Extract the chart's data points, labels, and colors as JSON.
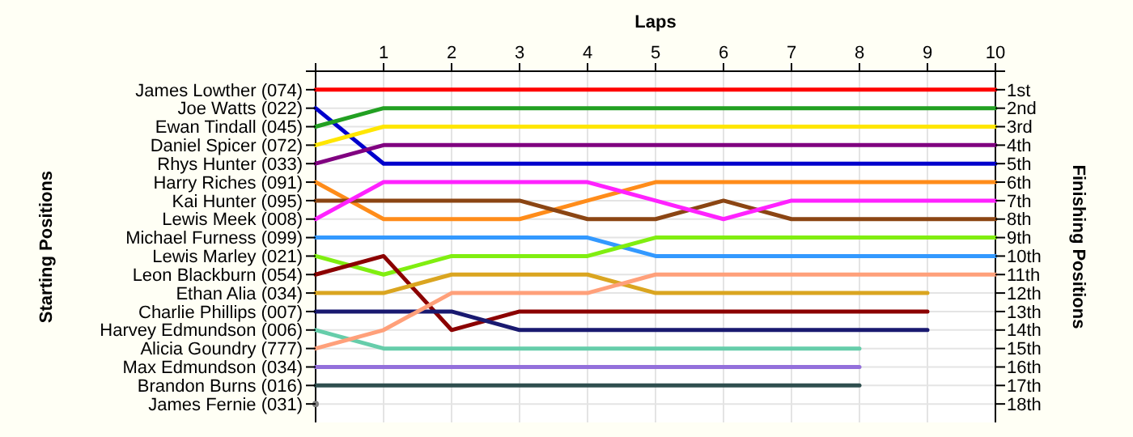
{
  "chart_data": {
    "type": "line",
    "xlabel": "Laps",
    "ylabel": "Finishing Positions",
    "annotations": [
      "Starting Positions"
    ],
    "x": [
      0,
      1,
      2,
      3,
      4,
      5,
      6,
      7,
      8,
      9,
      10
    ],
    "xlim": [
      0,
      10
    ],
    "xticks": [
      {
        "value": 0,
        "label": null
      },
      1,
      2,
      3,
      4,
      5,
      6,
      7,
      8,
      9,
      10
    ],
    "ylim": [
      19,
      0
    ],
    "yticks": [
      {
        "value": 1,
        "label": "1st"
      },
      {
        "value": 2,
        "label": "2nd"
      },
      {
        "value": 3,
        "label": "3rd"
      },
      {
        "value": 4,
        "label": "4th"
      },
      {
        "value": 5,
        "label": "5th"
      },
      {
        "value": 6,
        "label": "6th"
      },
      {
        "value": 7,
        "label": "7th"
      },
      {
        "value": 8,
        "label": "8th"
      },
      {
        "value": 9,
        "label": "9th"
      },
      {
        "value": 10,
        "label": "10th"
      },
      {
        "value": 11,
        "label": "11th"
      },
      {
        "value": 12,
        "label": "12th"
      },
      {
        "value": 13,
        "label": "13th"
      },
      {
        "value": 14,
        "label": "14th"
      },
      {
        "value": 15,
        "label": "15th"
      },
      {
        "value": 16,
        "label": "16th"
      },
      {
        "value": 17,
        "label": "17th"
      },
      {
        "value": 18,
        "label": "18th"
      }
    ],
    "grid": true,
    "marker": "none",
    "line_style": "solid",
    "series": [
      {
        "name": "James Lowther (074)",
        "color": "#ff0000",
        "values": [
          1,
          1,
          1,
          1,
          1,
          1,
          1,
          1,
          1,
          1,
          1
        ]
      },
      {
        "name": "Joe Watts (022)",
        "color": "#0000cc",
        "values": [
          2,
          5,
          5,
          5,
          5,
          5,
          5,
          5,
          5,
          5,
          5
        ]
      },
      {
        "name": "Ewan Tindall (045)",
        "color": "#22a022",
        "values": [
          3,
          2,
          2,
          2,
          2,
          2,
          2,
          2,
          2,
          2,
          2
        ]
      },
      {
        "name": "Daniel Spicer (072)",
        "color": "#ffe600",
        "values": [
          4,
          3,
          3,
          3,
          3,
          3,
          3,
          3,
          3,
          3,
          3
        ]
      },
      {
        "name": "Rhys Hunter (033)",
        "color": "#800080",
        "values": [
          5,
          4,
          4,
          4,
          4,
          4,
          4,
          4,
          4,
          4,
          4
        ]
      },
      {
        "name": "Harry Riches (091)",
        "color": "#ff8c1a",
        "values": [
          6,
          8,
          8,
          8,
          7,
          6,
          6,
          6,
          6,
          6,
          6
        ]
      },
      {
        "name": "Kai Hunter (095)",
        "color": "#8b4513",
        "values": [
          7,
          7,
          7,
          7,
          8,
          8,
          7,
          8,
          8,
          8,
          8
        ]
      },
      {
        "name": "Lewis Meek (008)",
        "color": "#ff22ff",
        "values": [
          8,
          6,
          6,
          6,
          6,
          7,
          8,
          7,
          7,
          7,
          7
        ]
      },
      {
        "name": "Michael Furness (099)",
        "color": "#3399ff",
        "values": [
          9,
          9,
          9,
          9,
          9,
          10,
          10,
          10,
          10,
          10,
          10
        ]
      },
      {
        "name": "Lewis Marley (021)",
        "color": "#80ee10",
        "values": [
          10,
          11,
          10,
          10,
          10,
          9,
          9,
          9,
          9,
          9,
          9
        ]
      },
      {
        "name": "Leon Blackburn (054)",
        "color": "#8b0000",
        "values": [
          11,
          10,
          14,
          13,
          13,
          13,
          13,
          13,
          13,
          13,
          null
        ]
      },
      {
        "name": "Ethan Alia (034)",
        "color": "#daa520",
        "values": [
          12,
          12,
          11,
          11,
          11,
          12,
          12,
          12,
          12,
          12,
          null
        ]
      },
      {
        "name": "Charlie Phillips (007)",
        "color": "#191970",
        "values": [
          13,
          13,
          13,
          14,
          14,
          14,
          14,
          14,
          14,
          14,
          null
        ]
      },
      {
        "name": "Harvey Edmundson (006)",
        "color": "#66cdaa",
        "values": [
          14,
          15,
          15,
          15,
          15,
          15,
          15,
          15,
          15,
          null,
          null
        ]
      },
      {
        "name": "Alicia Goundry (777)",
        "color": "#ffa07a",
        "values": [
          15,
          14,
          12,
          12,
          12,
          11,
          11,
          11,
          11,
          11,
          11
        ]
      },
      {
        "name": "Max Edmundson (034)",
        "color": "#9370db",
        "values": [
          16,
          16,
          16,
          16,
          16,
          16,
          16,
          16,
          16,
          null,
          null
        ]
      },
      {
        "name": "Brandon Burns (016)",
        "color": "#2f4f4f",
        "values": [
          17,
          17,
          17,
          17,
          17,
          17,
          17,
          17,
          17,
          null,
          null
        ]
      },
      {
        "name": "James Fernie (031)",
        "color": "#808080",
        "marker": "circle",
        "values": [
          18,
          null,
          null,
          null,
          null,
          null,
          null,
          null,
          null,
          null,
          null
        ]
      }
    ]
  }
}
